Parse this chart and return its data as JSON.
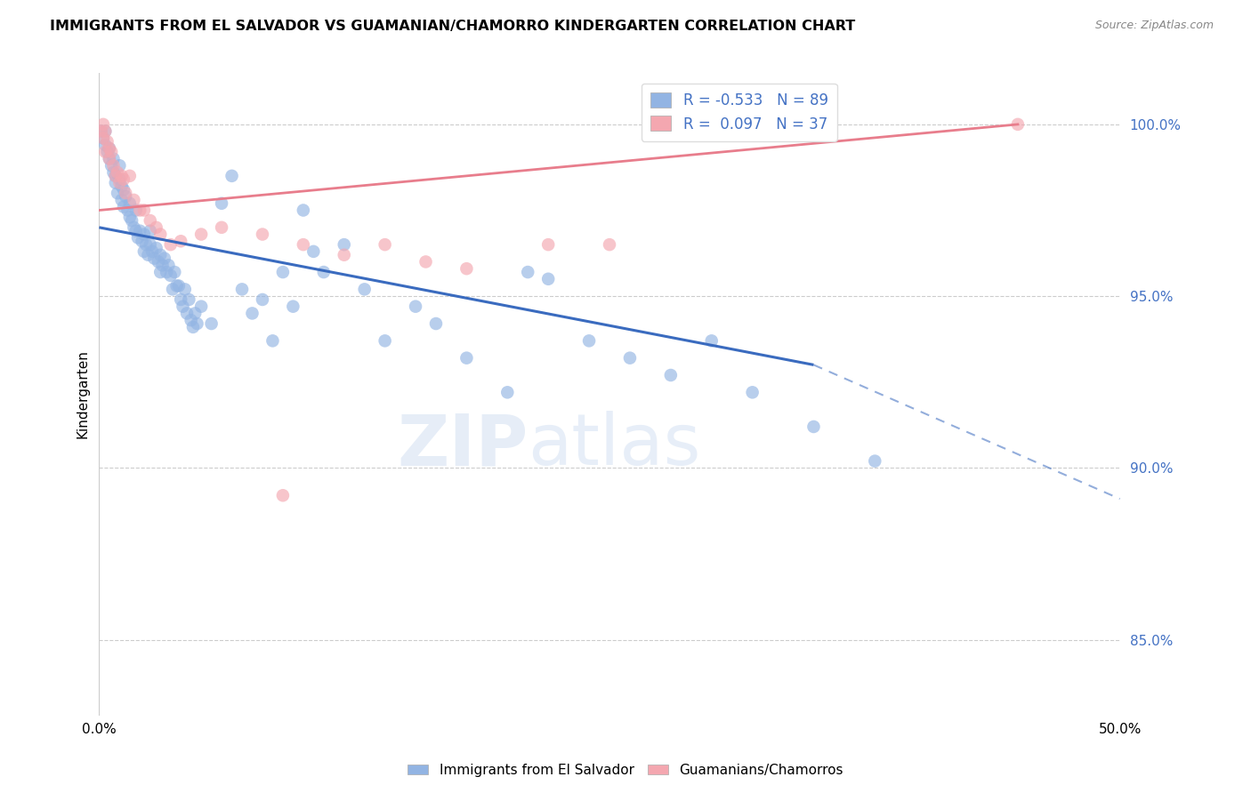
{
  "title": "IMMIGRANTS FROM EL SALVADOR VS GUAMANIAN/CHAMORRO KINDERGARTEN CORRELATION CHART",
  "source": "Source: ZipAtlas.com",
  "ylabel": "Kindergarten",
  "x_min": 0.0,
  "x_max": 0.5,
  "y_min": 0.828,
  "y_max": 1.015,
  "x_ticks": [
    0.0,
    0.1,
    0.2,
    0.3,
    0.4,
    0.5
  ],
  "x_tick_labels": [
    "0.0%",
    "",
    "",
    "",
    "",
    "50.0%"
  ],
  "y_ticks": [
    0.85,
    0.9,
    0.95,
    1.0
  ],
  "y_tick_labels": [
    "85.0%",
    "90.0%",
    "95.0%",
    "100.0%"
  ],
  "blue_color": "#92b4e3",
  "blue_line_color": "#3a6bbf",
  "pink_color": "#f4a7b0",
  "pink_line_color": "#e87d8c",
  "legend_blue_label_r": "R = -0.533",
  "legend_blue_label_n": "N = 89",
  "legend_pink_label_r": "R =  0.097",
  "legend_pink_label_n": "N = 37",
  "watermark_zip": "ZIP",
  "watermark_atlas": "atlas",
  "blue_line_x0": 0.0,
  "blue_line_y0": 0.97,
  "blue_line_x1": 0.35,
  "blue_line_y1": 0.93,
  "blue_line_dash_x1": 0.5,
  "blue_line_dash_y1": 0.891,
  "pink_line_x0": 0.0,
  "pink_line_y0": 0.975,
  "pink_line_x1": 0.45,
  "pink_line_y1": 1.0,
  "blue_scatter_x": [
    0.001,
    0.002,
    0.003,
    0.003,
    0.004,
    0.005,
    0.005,
    0.006,
    0.007,
    0.007,
    0.008,
    0.008,
    0.009,
    0.01,
    0.01,
    0.011,
    0.011,
    0.012,
    0.012,
    0.013,
    0.014,
    0.015,
    0.015,
    0.016,
    0.017,
    0.018,
    0.018,
    0.019,
    0.02,
    0.021,
    0.022,
    0.022,
    0.023,
    0.024,
    0.025,
    0.025,
    0.026,
    0.027,
    0.028,
    0.029,
    0.03,
    0.03,
    0.031,
    0.032,
    0.033,
    0.034,
    0.035,
    0.036,
    0.037,
    0.038,
    0.039,
    0.04,
    0.041,
    0.042,
    0.043,
    0.044,
    0.045,
    0.046,
    0.047,
    0.048,
    0.05,
    0.055,
    0.06,
    0.065,
    0.07,
    0.075,
    0.08,
    0.085,
    0.09,
    0.095,
    0.1,
    0.105,
    0.11,
    0.12,
    0.13,
    0.14,
    0.155,
    0.165,
    0.18,
    0.2,
    0.21,
    0.22,
    0.24,
    0.26,
    0.28,
    0.3,
    0.32,
    0.35,
    0.38
  ],
  "blue_scatter_y": [
    0.998,
    0.996,
    0.998,
    0.994,
    0.992,
    0.993,
    0.99,
    0.988,
    0.99,
    0.986,
    0.985,
    0.983,
    0.98,
    0.988,
    0.984,
    0.982,
    0.978,
    0.981,
    0.976,
    0.979,
    0.975,
    0.977,
    0.973,
    0.972,
    0.97,
    0.975,
    0.969,
    0.967,
    0.969,
    0.966,
    0.968,
    0.963,
    0.965,
    0.962,
    0.969,
    0.965,
    0.963,
    0.961,
    0.964,
    0.96,
    0.962,
    0.957,
    0.959,
    0.961,
    0.957,
    0.959,
    0.956,
    0.952,
    0.957,
    0.953,
    0.953,
    0.949,
    0.947,
    0.952,
    0.945,
    0.949,
    0.943,
    0.941,
    0.945,
    0.942,
    0.947,
    0.942,
    0.977,
    0.985,
    0.952,
    0.945,
    0.949,
    0.937,
    0.957,
    0.947,
    0.975,
    0.963,
    0.957,
    0.965,
    0.952,
    0.937,
    0.947,
    0.942,
    0.932,
    0.922,
    0.957,
    0.955,
    0.937,
    0.932,
    0.927,
    0.937,
    0.922,
    0.912,
    0.902
  ],
  "pink_scatter_x": [
    0.001,
    0.002,
    0.002,
    0.003,
    0.003,
    0.004,
    0.005,
    0.005,
    0.006,
    0.007,
    0.008,
    0.009,
    0.01,
    0.011,
    0.012,
    0.013,
    0.015,
    0.017,
    0.02,
    0.022,
    0.025,
    0.028,
    0.03,
    0.035,
    0.04,
    0.05,
    0.06,
    0.08,
    0.1,
    0.12,
    0.14,
    0.16,
    0.18,
    0.09,
    0.22,
    0.25,
    0.45
  ],
  "pink_scatter_y": [
    0.998,
    1.0,
    0.996,
    0.998,
    0.992,
    0.995,
    0.99,
    0.993,
    0.992,
    0.988,
    0.985,
    0.986,
    0.983,
    0.985,
    0.984,
    0.98,
    0.985,
    0.978,
    0.975,
    0.975,
    0.972,
    0.97,
    0.968,
    0.965,
    0.966,
    0.968,
    0.97,
    0.968,
    0.965,
    0.962,
    0.965,
    0.96,
    0.958,
    0.892,
    0.965,
    0.965,
    1.0
  ]
}
